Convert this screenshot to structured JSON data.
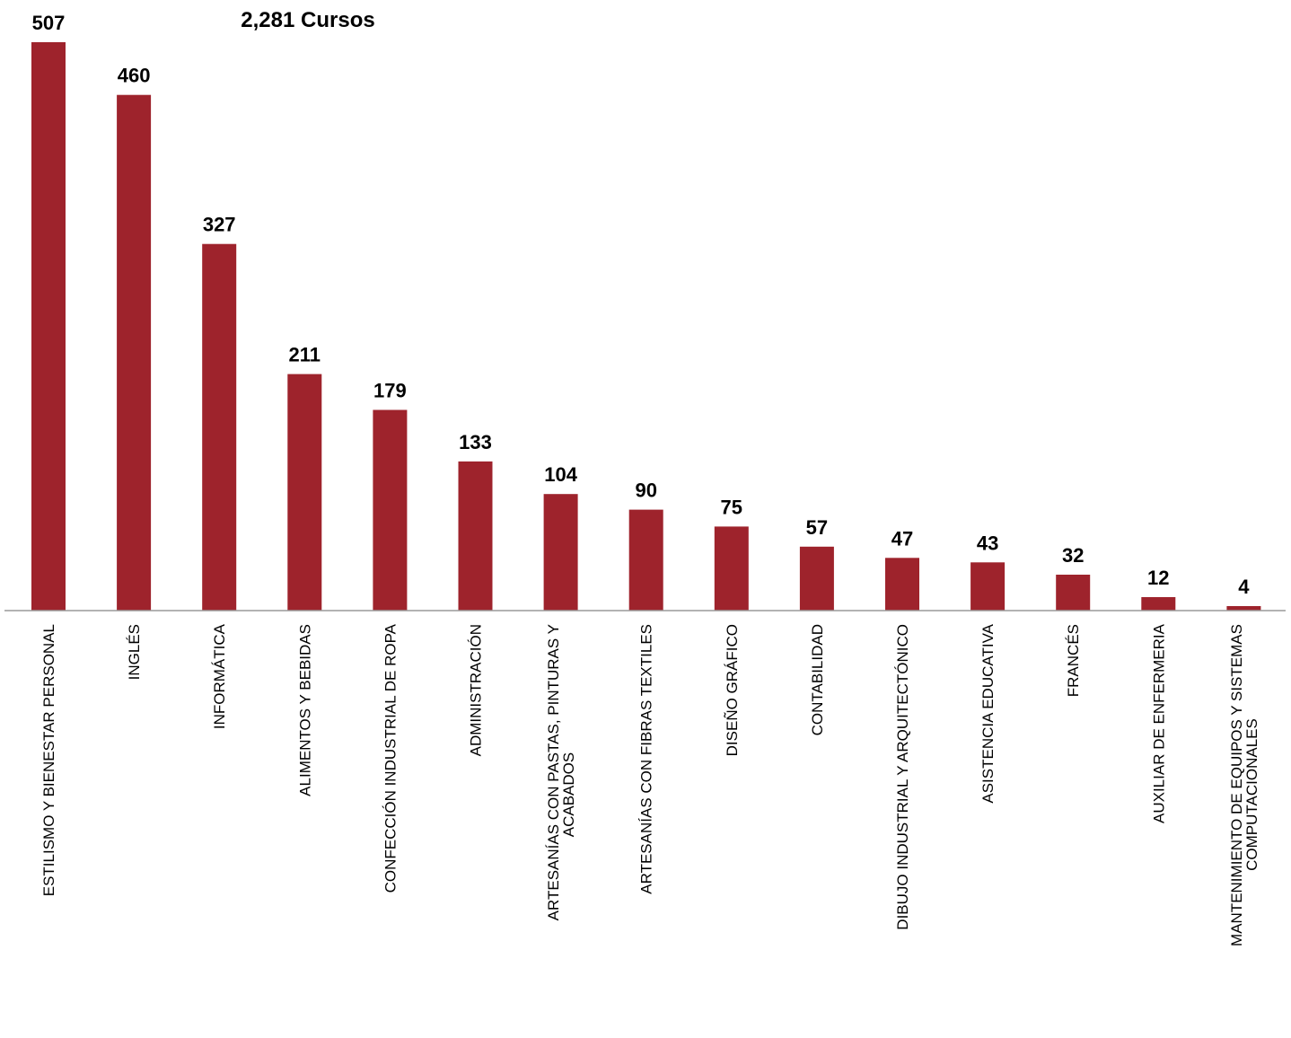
{
  "chart_data": {
    "type": "bar",
    "title": "2,281 Cursos",
    "xlabel": "",
    "ylabel": "",
    "ylim": [
      0,
      507
    ],
    "grid": false,
    "legend": "none",
    "bar_color": "#9E232C",
    "axis_color": "#9a9a9a",
    "categories": [
      [
        "ESTILISMO Y BIENESTAR PERSONAL"
      ],
      [
        "INGLÉS"
      ],
      [
        "INFORMÁTICA"
      ],
      [
        "ALIMENTOS Y BEBIDAS"
      ],
      [
        "CONFECCIÓN INDUSTRIAL DE ROPA"
      ],
      [
        "ADMINISTRACIÓN"
      ],
      [
        "ARTESANÍAS CON PASTAS, PINTURAS Y",
        "ACABADOS"
      ],
      [
        "ARTESANÍAS CON FIBRAS TEXTILES"
      ],
      [
        "DISEÑO GRÁFICO"
      ],
      [
        "CONTABILIDAD"
      ],
      [
        "DIBUJO INDUSTRIAL Y ARQUITECTÓNICO"
      ],
      [
        "ASISTENCIA EDUCATIVA"
      ],
      [
        "FRANCÉS"
      ],
      [
        "AUXILIAR DE ENFERMERIA"
      ],
      [
        "MANTENIMIENTO DE EQUIPOS Y SISTEMAS",
        "COMPUTACIONALES"
      ]
    ],
    "values": [
      507,
      460,
      327,
      211,
      179,
      133,
      104,
      90,
      75,
      57,
      47,
      43,
      32,
      12,
      4
    ]
  }
}
